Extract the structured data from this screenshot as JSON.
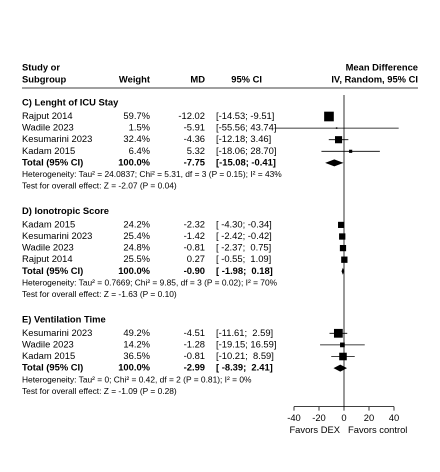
{
  "header": {
    "study": [
      "Study or",
      "Subgroup"
    ],
    "weight": "Weight",
    "md": "MD",
    "ci": "95% CI",
    "plot": [
      "Mean Difference",
      "IV, Random, 95% CI"
    ]
  },
  "axis": {
    "xlim": [
      -40,
      40
    ],
    "xticks": [
      -40,
      -20,
      0,
      20,
      40
    ],
    "left_label": "Favors DEX",
    "right_label": "Favors control"
  },
  "groups": [
    {
      "title": "C) Lenght of ICU Stay",
      "studies": [
        {
          "name": "Rajput 2014",
          "weight": 59.7,
          "weight_label": "59.7%",
          "md": -12.02,
          "lo": -14.53,
          "hi": -9.51,
          "ci_label": "[-14.53; -9.51]"
        },
        {
          "name": "Wadile 2023",
          "weight": 1.5,
          "weight_label": "1.5%",
          "md": -5.91,
          "lo": -55.56,
          "hi": 43.74,
          "ci_label": "[-55.56; 43.74]"
        },
        {
          "name": "Kesumarini 2023",
          "weight": 32.4,
          "weight_label": "32.4%",
          "md": -4.36,
          "lo": -12.18,
          "hi": 3.46,
          "ci_label": "[-12.18; 3.46]"
        },
        {
          "name": "Kadam 2015",
          "weight": 6.4,
          "weight_label": "6.4%",
          "md": 5.32,
          "lo": -18.06,
          "hi": 28.7,
          "ci_label": "[-18.06; 28.70]"
        }
      ],
      "total": {
        "name": "Total (95% CI)",
        "weight_label": "100.0%",
        "md": -7.75,
        "lo": -15.08,
        "hi": -0.41,
        "ci_label": "[-15.08; -0.41]"
      },
      "heterogeneity": "Heterogeneity: Tau² = 24.0837; Chi² = 5.31, df = 3 (P = 0.15); I² = 43%",
      "overall": "Test for overall effect: Z = -2.07 (P = 0.04)"
    },
    {
      "title": "D) Ionotropic Score",
      "studies": [
        {
          "name": "Kadam 2015",
          "weight": 24.2,
          "weight_label": "24.2%",
          "md": -2.32,
          "lo": -4.3,
          "hi": -0.34,
          "ci_label": "[ -4.30; -0.34]"
        },
        {
          "name": "Kesumarini 2023",
          "weight": 25.4,
          "weight_label": "25.4%",
          "md": -1.42,
          "lo": -2.42,
          "hi": -0.42,
          "ci_label": "[ -2.42; -0.42]"
        },
        {
          "name": "Wadile 2023",
          "weight": 24.8,
          "weight_label": "24.8%",
          "md": -0.81,
          "lo": -2.37,
          "hi": 0.75,
          "ci_label": "[ -2.37;  0.75]"
        },
        {
          "name": "Rajput 2014",
          "weight": 25.5,
          "weight_label": "25.5%",
          "md": 0.27,
          "lo": -0.55,
          "hi": 1.09,
          "ci_label": "[ -0.55;  1.09]"
        }
      ],
      "total": {
        "name": "Total (95% CI)",
        "weight_label": "100.0%",
        "md": -0.9,
        "md_label": "-0.90",
        "lo": -1.98,
        "hi": 0.18,
        "ci_label": "[ -1.98;  0.18]"
      },
      "heterogeneity": "Heterogeneity: Tau² = 0.7669; Chi² = 9.85, df = 3 (P = 0.02); I² = 70%",
      "overall": "Test for overall effect: Z = -1.63 (P = 0.10)"
    },
    {
      "title": "E) Ventilation Time",
      "studies": [
        {
          "name": "Kesumarini 2023",
          "weight": 49.2,
          "weight_label": "49.2%",
          "md": -4.51,
          "lo": -11.61,
          "hi": 2.59,
          "ci_label": "[-11.61;  2.59]"
        },
        {
          "name": "Wadile 2023",
          "weight": 14.2,
          "weight_label": "14.2%",
          "md": -1.28,
          "lo": -19.15,
          "hi": 16.59,
          "ci_label": "[-19.15; 16.59]"
        },
        {
          "name": "Kadam 2015",
          "weight": 36.5,
          "weight_label": "36.5%",
          "md": -0.81,
          "lo": -10.21,
          "hi": 8.59,
          "ci_label": "[-10.21;  8.59]"
        }
      ],
      "total": {
        "name": "Total (95% CI)",
        "weight_label": "100.0%",
        "md": -2.99,
        "lo": -8.39,
        "hi": 2.41,
        "ci_label": "[ -8.39;  2.41]"
      },
      "heterogeneity": "Heterogeneity: Tau² = 0; Chi² = 0.42, df = 2 (P = 0.81); I² = 0%",
      "overall": "Test for overall effect: Z = -1.09 (P = 0.28)"
    }
  ]
}
